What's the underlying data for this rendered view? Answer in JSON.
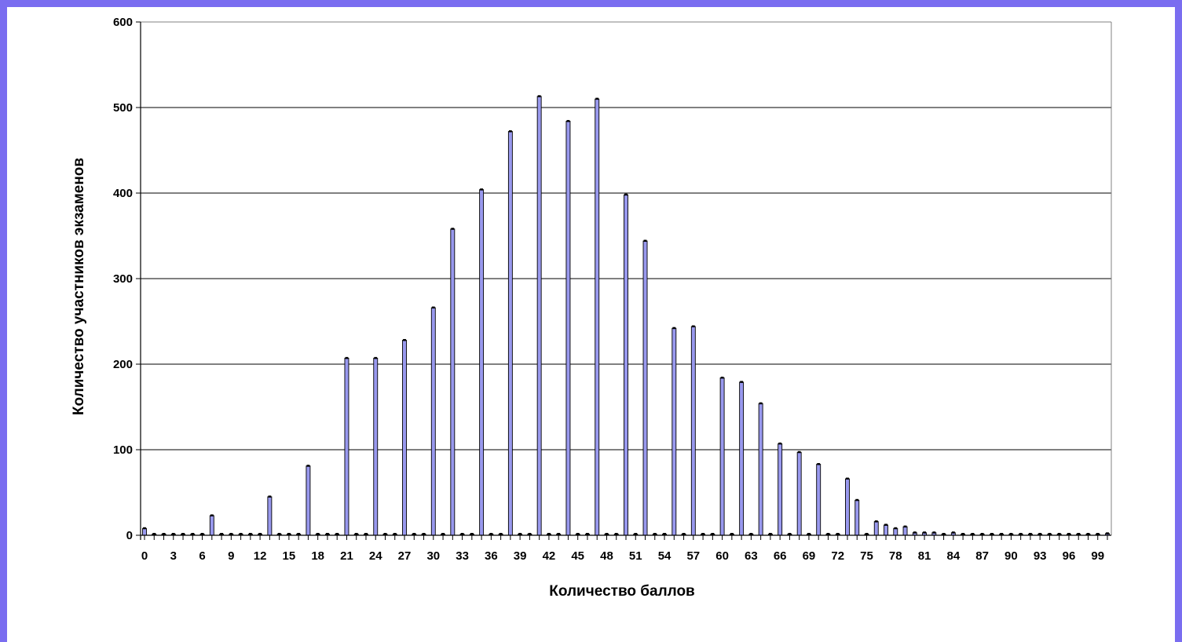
{
  "chart_data": {
    "type": "bar",
    "xlabel": "Количество баллов",
    "ylabel": "Количество участников экзаменов",
    "ylim": [
      0,
      600
    ],
    "yticks": [
      0,
      100,
      200,
      300,
      400,
      500,
      600
    ],
    "xticks": [
      0,
      3,
      6,
      9,
      12,
      15,
      18,
      21,
      24,
      27,
      30,
      33,
      36,
      39,
      42,
      45,
      48,
      51,
      54,
      57,
      60,
      63,
      66,
      69,
      72,
      75,
      78,
      81,
      84,
      87,
      90,
      93,
      96,
      99
    ],
    "grid": true,
    "legend": "none",
    "bar_color": "#9999ee",
    "x": [
      0,
      1,
      2,
      3,
      4,
      5,
      6,
      7,
      8,
      9,
      10,
      11,
      12,
      13,
      14,
      15,
      16,
      17,
      18,
      19,
      20,
      21,
      22,
      23,
      24,
      25,
      26,
      27,
      28,
      29,
      30,
      31,
      32,
      33,
      34,
      35,
      36,
      37,
      38,
      39,
      40,
      41,
      42,
      43,
      44,
      45,
      46,
      47,
      48,
      49,
      50,
      51,
      52,
      53,
      54,
      55,
      56,
      57,
      58,
      59,
      60,
      61,
      62,
      63,
      64,
      65,
      66,
      67,
      68,
      69,
      70,
      71,
      72,
      73,
      74,
      75,
      76,
      77,
      78,
      79,
      80,
      81,
      82,
      83,
      84,
      85,
      86,
      87,
      88,
      89,
      90,
      91,
      92,
      93,
      94,
      95,
      96,
      97,
      98,
      99,
      100
    ],
    "values": [
      8,
      0,
      0,
      0,
      0,
      0,
      0,
      23,
      0,
      0,
      0,
      0,
      0,
      45,
      0,
      0,
      0,
      81,
      0,
      0,
      0,
      207,
      0,
      0,
      207,
      0,
      0,
      228,
      0,
      0,
      266,
      0,
      358,
      0,
      0,
      404,
      0,
      0,
      472,
      0,
      0,
      513,
      0,
      0,
      484,
      0,
      0,
      510,
      0,
      0,
      398,
      0,
      344,
      0,
      0,
      242,
      0,
      244,
      0,
      0,
      184,
      0,
      179,
      0,
      154,
      0,
      107,
      0,
      97,
      0,
      83,
      0,
      0,
      66,
      41,
      0,
      16,
      12,
      8,
      10,
      3,
      3,
      3,
      1,
      3,
      0,
      1,
      0,
      0,
      0,
      1,
      0,
      0,
      0,
      0,
      0,
      0,
      0,
      0,
      0,
      2
    ]
  }
}
